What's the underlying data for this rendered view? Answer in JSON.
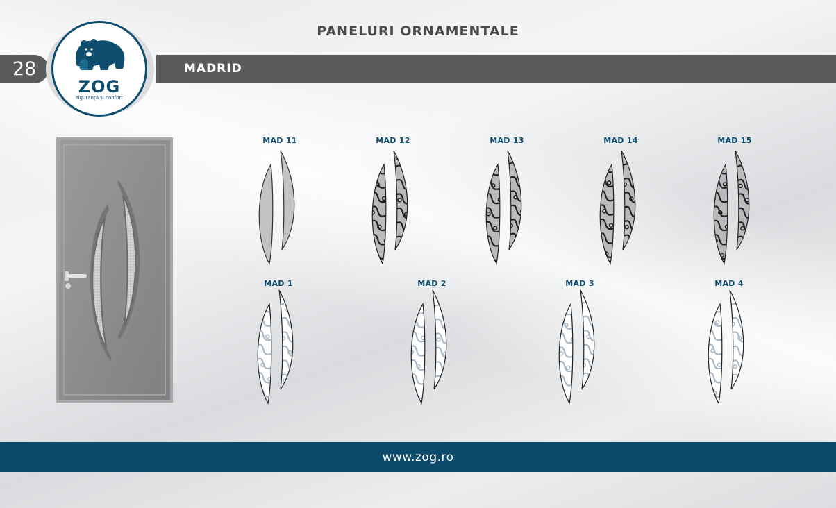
{
  "header": {
    "title": "PANELURI ORNAMENTALE",
    "page_number": "28",
    "model_name": "MADRID"
  },
  "logo": {
    "name": "ZOG",
    "tagline": "siguranță și confort"
  },
  "panels_dark": [
    {
      "code": "MAD 11",
      "style": "frosted"
    },
    {
      "code": "MAD 12",
      "style": "dark-swirl"
    },
    {
      "code": "MAD 13",
      "style": "dark-tribal"
    },
    {
      "code": "MAD 14",
      "style": "dark-floral"
    },
    {
      "code": "MAD 15",
      "style": "dark-dense"
    }
  ],
  "panels_light": [
    {
      "code": "MAD 1",
      "style": "light-swirl"
    },
    {
      "code": "MAD 2",
      "style": "light-leaf"
    },
    {
      "code": "MAD 3",
      "style": "light-floral"
    },
    {
      "code": "MAD 4",
      "style": "light-lace"
    }
  ],
  "footer": {
    "url": "www.zog.ro"
  },
  "colors": {
    "brand_blue": "#0c4a6b",
    "bar_gray": "#5a5b5d",
    "door_gray": "#8d8e90"
  }
}
